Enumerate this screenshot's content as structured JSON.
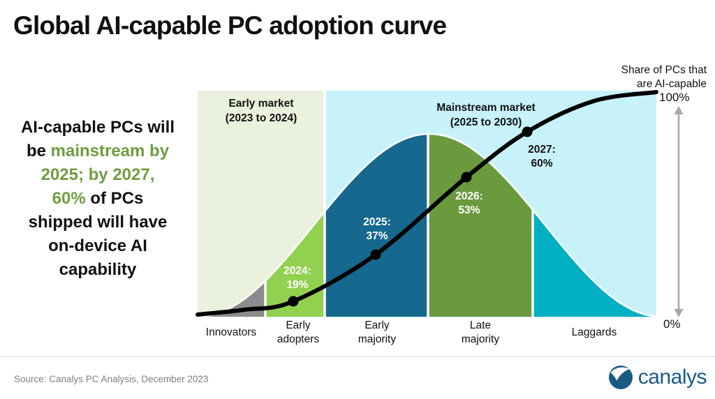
{
  "title": "Global AI-capable PC adoption curve",
  "message": {
    "full_text": "AI-capable PCs will be mainstream by 2025; by 2027, 60% of PCs shipped will have on-device AI capability",
    "highlight_color": "#6f9e41",
    "lines": [
      [
        {
          "t": "AI-capable PCs will",
          "c": "black"
        }
      ],
      [
        {
          "t": "be ",
          "c": "black"
        },
        {
          "t": "mainstream by",
          "c": "green"
        }
      ],
      [
        {
          "t": "2025; by 2027,",
          "c": "green"
        }
      ],
      [
        {
          "t": "60%",
          "c": "green"
        },
        {
          "t": " of PCs",
          "c": "black"
        }
      ],
      [
        {
          "t": "shipped will have",
          "c": "black"
        }
      ],
      [
        {
          "t": "on-device AI",
          "c": "black"
        }
      ],
      [
        {
          "t": "capability",
          "c": "black"
        }
      ]
    ]
  },
  "chart_data": {
    "type": "area",
    "title": "Global AI-capable PC adoption curve",
    "markets": [
      {
        "label": "Early market",
        "sublabel": "(2023 to 2024)",
        "bg": "#eaf1dc"
      },
      {
        "label": "Mainstream market",
        "sublabel": "(2025 to 2030)",
        "bg": "#c8f2fa"
      }
    ],
    "segments": [
      {
        "name": "Innovators",
        "color": "#8c8c8c"
      },
      {
        "name": "Early adopters",
        "color": "#92d050"
      },
      {
        "name": "Early majority",
        "color": "#16688e"
      },
      {
        "name": "Late majority",
        "color": "#6b9a3e"
      },
      {
        "name": "Laggards",
        "color": "#00b0c2"
      }
    ],
    "points": [
      {
        "year": 2024,
        "share_pct": 19,
        "year_label": "2024:",
        "value_label": "19%"
      },
      {
        "year": 2025,
        "share_pct": 37,
        "year_label": "2025:",
        "value_label": "37%"
      },
      {
        "year": 2026,
        "share_pct": 53,
        "year_label": "2026:",
        "value_label": "53%"
      },
      {
        "year": 2027,
        "share_pct": 60,
        "year_label": "2027:",
        "value_label": "60%"
      }
    ],
    "curve_color": "#000000",
    "axis": {
      "label_line1": "Share of PCs that",
      "label_line2": "are AI-capable",
      "max_label": "100%",
      "min_label": "0%",
      "range_pct": [
        0,
        100
      ],
      "arrow_color": "#a8a8a8"
    },
    "legend_position": "none",
    "grid": false
  },
  "source": "Source: Canalys PC Analysis, December 2023",
  "logo": {
    "text": "canalys",
    "color": "#1a5c84"
  }
}
